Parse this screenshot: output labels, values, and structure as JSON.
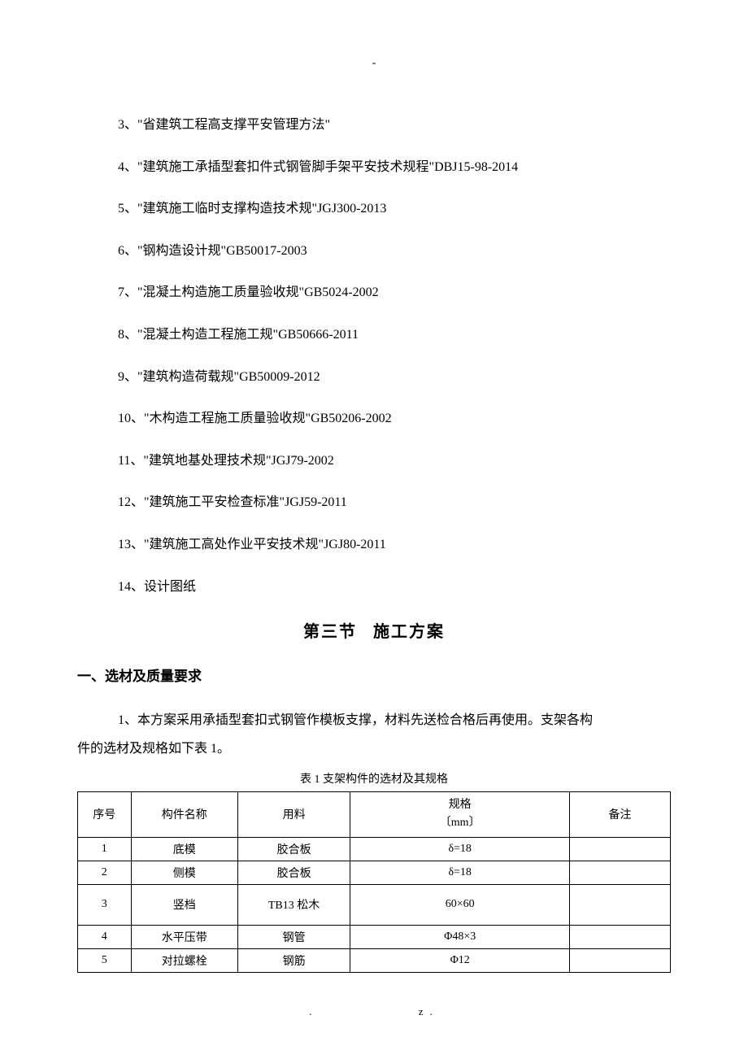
{
  "top_dash": "-",
  "list_items": [
    "3、\"省建筑工程高支撑平安管理方法\"",
    "4、\"建筑施工承插型套扣件式钢管脚手架平安技术规程\"DBJ15-98-2014",
    "5、\"建筑施工临时支撑构造技术规\"JGJ300-2013",
    "6、\"钢构造设计规\"GB50017-2003",
    "7、\"混凝土构造施工质量验收规\"GB5024-2002",
    "8、\"混凝土构造工程施工规\"GB50666-2011",
    "9、\"建筑构造荷载规\"GB50009-2012",
    "10、\"木构造工程施工质量验收规\"GB50206-2002",
    "11、\"建筑地基处理技术规\"JGJ79-2002",
    "12、\"建筑施工平安检查标准\"JGJ59-2011",
    "13、\"建筑施工高处作业平安技术规\"JGJ80-2011",
    "14、设计图纸"
  ],
  "section_title_left": "第三节",
  "section_title_right": "施工方案",
  "subsection_title": "一、选材及质量要求",
  "paragraph_line1": "1、本方案采用承插型套扣式钢管作模板支撑，材料先送检合格后再使用。支架各构",
  "paragraph_line2": "件的选材及规格如下表 1。",
  "table_caption": "表 1 支架构件的选材及其规格",
  "table": {
    "headers": {
      "seq": "序号",
      "name": "构件名称",
      "material": "用料",
      "spec_line1": "规格",
      "spec_line2": "〔mm〕",
      "note": "备注"
    },
    "rows": [
      {
        "seq": "1",
        "name": "底模",
        "material": "胶合板",
        "spec": "δ=18",
        "note": "",
        "tall": false
      },
      {
        "seq": "2",
        "name": "侧模",
        "material": "胶合板",
        "spec": "δ=18",
        "note": "",
        "tall": false
      },
      {
        "seq": "3",
        "name": "竖档",
        "material": "TB13 松木",
        "spec": "60×60",
        "note": "",
        "tall": true
      },
      {
        "seq": "4",
        "name": "水平压带",
        "material": "钢管",
        "spec": "Φ48×3",
        "note": "",
        "tall": false
      },
      {
        "seq": "5",
        "name": "对拉螺栓",
        "material": "钢筋",
        "spec": "Φ12",
        "note": "",
        "tall": false
      }
    ]
  },
  "footer_left": ".",
  "footer_right": "z."
}
